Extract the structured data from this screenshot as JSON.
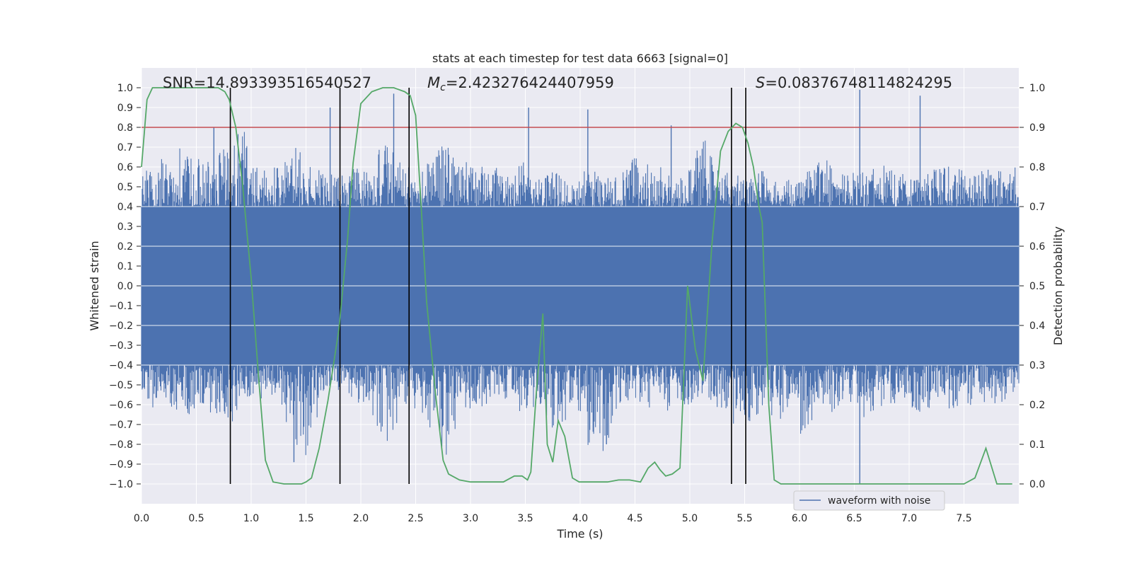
{
  "chart_data": {
    "type": "line",
    "title": "stats at each timestep for test data 6663 [signal=0]",
    "xlabel": "Time (s)",
    "ylabel": "Whitened strain",
    "y2label": "Detection probability",
    "xlim": [
      0.0,
      8.0
    ],
    "ylim": [
      -1.1,
      1.1
    ],
    "y2lim": [
      -0.05,
      1.05
    ],
    "xticks": [
      "0.0",
      "0.5",
      "1.0",
      "1.5",
      "2.0",
      "2.5",
      "3.0",
      "3.5",
      "4.0",
      "4.5",
      "5.0",
      "5.5",
      "6.0",
      "6.5",
      "7.0",
      "7.5"
    ],
    "yticks": [
      "1.0",
      "0.9",
      "0.8",
      "0.7",
      "0.6",
      "0.5",
      "0.4",
      "0.3",
      "0.2",
      "0.1",
      "0.0",
      "−0.1",
      "−0.2",
      "−0.3",
      "−0.4",
      "−0.5",
      "−0.6",
      "−0.7",
      "−0.8",
      "−0.9",
      "−1.0"
    ],
    "y2ticks": [
      "1.0",
      "0.9",
      "0.8",
      "0.7",
      "0.6",
      "0.5",
      "0.4",
      "0.3",
      "0.2",
      "0.1",
      "0.0"
    ],
    "grid": true,
    "legend": {
      "position": "lower-right",
      "entries": [
        "waveform with noise"
      ]
    },
    "annotations": {
      "snr": "SNR=14.893393516540527",
      "mc_symbol": "M",
      "mc_sub": "c",
      "mc_value": "=2.423276424407959",
      "s_symbol": "S",
      "s_value": "=0.08376748114824295"
    },
    "threshold": {
      "y2": 0.9,
      "color": "#c44e52"
    },
    "vertical_lines_x": [
      0.81,
      1.81,
      2.44,
      5.38,
      5.51
    ],
    "series": [
      {
        "name": "waveform with noise",
        "axis": "left",
        "color": "#4c72b0",
        "render": "dense noise band",
        "envelope_top": [
          0.6,
          0.67,
          0.62,
          0.7,
          0.66,
          0.62,
          0.68,
          0.72,
          0.8,
          0.6,
          0.62,
          0.6,
          0.78,
          0.59,
          0.64,
          0.58,
          0.55,
          0.62,
          0.58,
          0.75,
          0.66,
          0.62,
          0.58,
          0.68,
          0.72,
          0.62,
          0.7,
          0.58,
          0.6,
          0.56,
          0.64,
          0.55,
          0.56,
          0.6,
          0.52,
          0.62,
          0.56,
          0.58,
          0.6,
          0.66,
          0.62,
          0.6,
          0.54,
          0.58,
          0.8,
          0.62,
          0.6,
          0.58,
          0.55,
          0.6,
          0.52,
          0.55,
          0.58,
          0.62,
          0.66,
          0.56,
          0.6,
          0.58,
          0.64,
          0.6,
          0.56,
          0.54,
          0.58,
          0.6,
          0.62,
          0.55,
          0.58,
          0.6,
          0.56,
          0.64
        ],
        "envelope_bottom": [
          -0.52,
          -0.64,
          -0.6,
          -0.64,
          -0.66,
          -0.6,
          -0.7,
          -0.72,
          -0.6,
          -0.58,
          -0.56,
          -0.62,
          -0.8,
          -0.9,
          -0.62,
          -0.48,
          -0.58,
          -0.6,
          -0.62,
          -0.82,
          -0.72,
          -0.6,
          -0.64,
          -0.78,
          -0.86,
          -0.68,
          -0.64,
          -0.6,
          -0.62,
          -0.58,
          -0.66,
          -0.62,
          -0.76,
          -0.7,
          -0.64,
          -0.8,
          -0.92,
          -0.72,
          -0.6,
          -0.58,
          -0.62,
          -0.6,
          -0.7,
          -0.6,
          -0.58,
          -0.62,
          -0.64,
          -0.74,
          -0.68,
          -0.62,
          -0.7,
          -0.6,
          -0.78,
          -0.64,
          -0.66,
          -0.6,
          -0.62,
          -0.7,
          -0.62,
          -0.6,
          -0.58,
          -0.64,
          -0.62,
          -0.6,
          -0.66,
          -0.6,
          -0.62,
          -0.6,
          -0.58,
          -0.5
        ],
        "spikes": [
          {
            "x": 1.72,
            "y": 0.9
          },
          {
            "x": 2.3,
            "y": 0.97
          },
          {
            "x": 3.53,
            "y": 0.9
          },
          {
            "x": 4.07,
            "y": 0.89
          },
          {
            "x": 4.83,
            "y": 0.81
          },
          {
            "x": 6.55,
            "y": 0.99
          },
          {
            "x": 7.1,
            "y": 0.96
          },
          {
            "x": 0.66,
            "y": 0.8
          },
          {
            "x": 6.55,
            "y": -1.0
          },
          {
            "x": 1.39,
            "y": -0.89
          },
          {
            "x": 4.24,
            "y": -0.8
          }
        ]
      },
      {
        "name": "",
        "axis": "right",
        "color": "#55a868",
        "x": [
          0.0,
          0.05,
          0.1,
          0.2,
          0.3,
          0.4,
          0.5,
          0.6,
          0.7,
          0.76,
          0.8,
          0.86,
          0.92,
          1.0,
          1.07,
          1.13,
          1.2,
          1.3,
          1.4,
          1.46,
          1.5,
          1.55,
          1.62,
          1.7,
          1.8,
          1.88,
          1.93,
          2.0,
          2.1,
          2.2,
          2.3,
          2.4,
          2.45,
          2.5,
          2.55,
          2.6,
          2.68,
          2.75,
          2.8,
          2.9,
          3.0,
          3.1,
          3.2,
          3.3,
          3.4,
          3.47,
          3.52,
          3.55,
          3.6,
          3.66,
          3.7,
          3.75,
          3.8,
          3.86,
          3.93,
          3.99,
          4.05,
          4.15,
          4.25,
          4.35,
          4.45,
          4.55,
          4.62,
          4.68,
          4.73,
          4.78,
          4.84,
          4.91,
          4.98,
          5.05,
          5.12,
          5.2,
          5.28,
          5.35,
          5.42,
          5.48,
          5.53,
          5.58,
          5.63,
          5.66,
          5.72,
          5.77,
          5.83,
          5.88,
          5.95,
          6.05,
          6.2,
          6.4,
          6.6,
          6.8,
          6.9,
          7.0,
          7.1,
          7.2,
          7.3,
          7.4,
          7.5,
          7.6,
          7.7,
          7.8,
          7.87,
          7.94
        ],
        "y": [
          0.8,
          0.97,
          1.0,
          1.0,
          1.0,
          1.0,
          1.0,
          1.0,
          1.0,
          0.99,
          0.97,
          0.9,
          0.76,
          0.52,
          0.26,
          0.06,
          0.005,
          0.0,
          0.0,
          0.0,
          0.005,
          0.015,
          0.09,
          0.21,
          0.39,
          0.62,
          0.81,
          0.96,
          0.99,
          1.0,
          1.0,
          0.99,
          0.98,
          0.93,
          0.7,
          0.46,
          0.23,
          0.06,
          0.025,
          0.01,
          0.005,
          0.005,
          0.005,
          0.005,
          0.02,
          0.02,
          0.01,
          0.03,
          0.23,
          0.43,
          0.1,
          0.055,
          0.16,
          0.12,
          0.015,
          0.005,
          0.005,
          0.005,
          0.005,
          0.01,
          0.01,
          0.005,
          0.04,
          0.055,
          0.035,
          0.02,
          0.025,
          0.04,
          0.5,
          0.34,
          0.26,
          0.6,
          0.84,
          0.89,
          0.91,
          0.9,
          0.86,
          0.8,
          0.7,
          0.66,
          0.2,
          0.01,
          0.0,
          0.0,
          0.0,
          0.0,
          0.0,
          0.0,
          0.0,
          0.0,
          0.0,
          0.0,
          0.0,
          0.0,
          0.0,
          0.0,
          0.0,
          0.015,
          0.09,
          0.0,
          0.0,
          0.0
        ]
      }
    ]
  }
}
